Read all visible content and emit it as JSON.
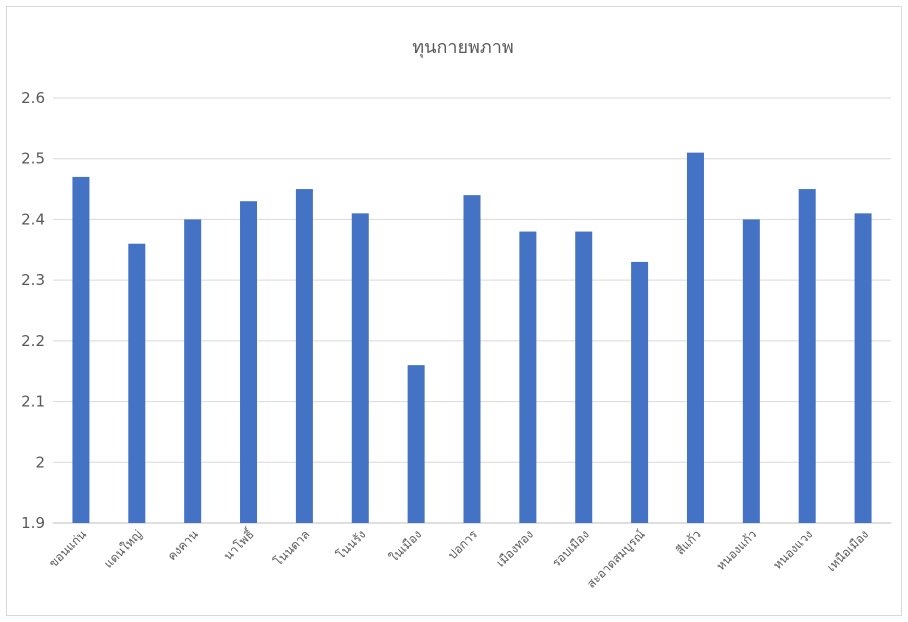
{
  "chart_data": {
    "type": "bar",
    "title": "ทุนกายพภาพ",
    "xlabel": "",
    "ylabel": "",
    "ylim": [
      1.9,
      2.6
    ],
    "yticks": [
      1.9,
      2.0,
      2.1,
      2.2,
      2.3,
      2.4,
      2.5,
      2.6
    ],
    "ytick_labels": [
      "1.9",
      "2",
      "2.1",
      "2.2",
      "2.3",
      "2.4",
      "2.5",
      "2.6"
    ],
    "grid": true,
    "legend": "none",
    "bar_color": "#4472c4",
    "categories": [
      "ขอนแก่น",
      "แดนใหญ่",
      "คงคาน",
      "นาโพธิ์",
      "โนนตาล",
      "โนนรัง",
      "ในเมือง",
      "ปอการ",
      "เมืองทอง",
      "รอบเมือง",
      "สะอาดสมบูรณ์",
      "สีแก้ว",
      "หนองแก้ว",
      "หนองแวง",
      "เหนือเมือง"
    ],
    "values": [
      2.47,
      2.36,
      2.4,
      2.43,
      2.45,
      2.41,
      2.16,
      2.44,
      2.38,
      2.38,
      2.33,
      2.51,
      2.4,
      2.45,
      2.41
    ]
  }
}
